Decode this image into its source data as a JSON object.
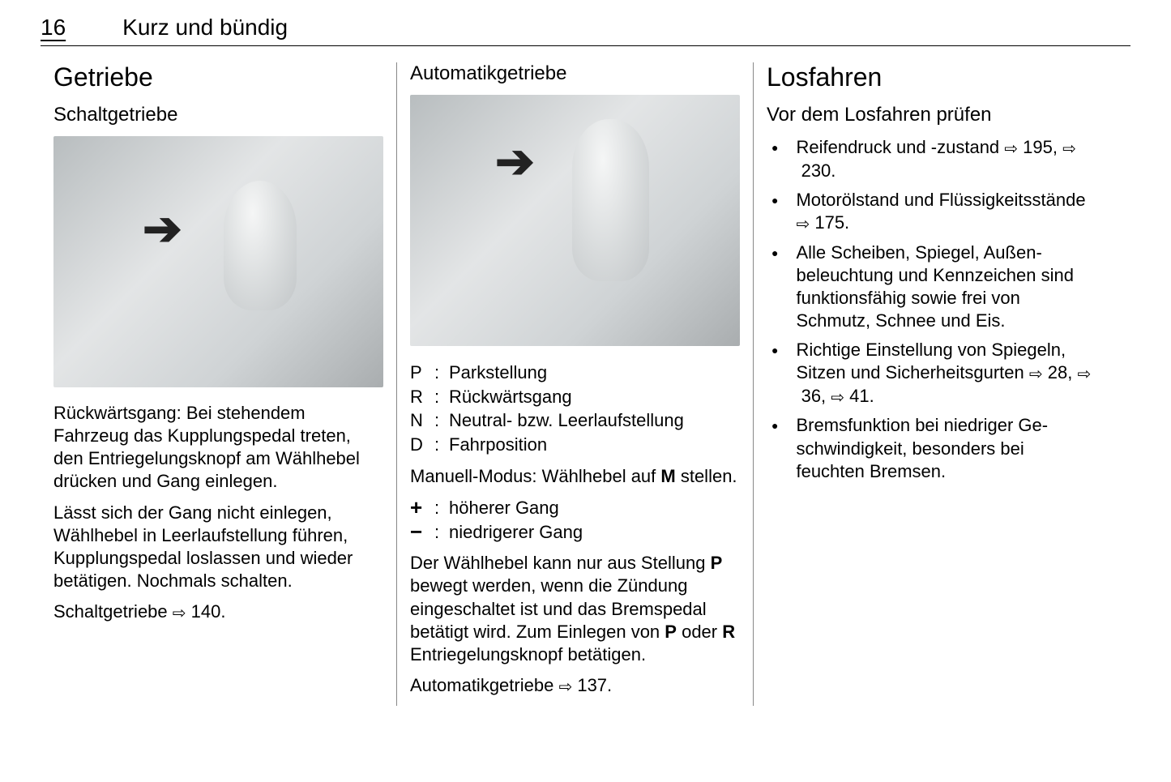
{
  "header": {
    "page_number": "16",
    "chapter": "Kurz und bündig"
  },
  "ref_glyph": "⇨",
  "col1": {
    "h1": "Getriebe",
    "h2": "Schaltgetriebe",
    "para1": "Rückwärtsgang: Bei stehendem Fahrzeug das Kupplungspedal tre­ten, den Entriegelungsknopf am Wählhebel drücken und Gang einle­gen.",
    "para2": "Lässt sich der Gang nicht einlegen, Wählhebel in Leerlaufstellung führen, Kupplungspedal loslassen und wie­der betätigen. Nochmals schalten.",
    "para3_pre": "Schaltgetriebe ",
    "para3_ref": "140."
  },
  "col2": {
    "h2": "Automatikgetriebe",
    "defs1": [
      {
        "k": "P",
        "v": "Parkstellung"
      },
      {
        "k": "R",
        "v": "Rückwärtsgang"
      },
      {
        "k": "N",
        "v": "Neutral- bzw. Leerlaufstellung"
      },
      {
        "k": "D",
        "v": "Fahrposition"
      }
    ],
    "para1_pre": "Manuell-Modus: Wählhebel auf ",
    "para1_b": "M",
    "para1_post": " stellen.",
    "defs2": [
      {
        "k": "+",
        "v": "höherer Gang"
      },
      {
        "k": "−",
        "v": "niedrigerer Gang"
      }
    ],
    "para2": "Der Wählhebel kann nur aus Stellung P bewegt werden, wenn die Zündung eingeschaltet ist und das Bremspedal betätigt wird. Zum Einlegen von P oder R Entriegelungsknopf betätigen.",
    "para3_pre": "Automatikgetriebe ",
    "para3_ref": "137."
  },
  "col3": {
    "h1": "Losfahren",
    "h2": "Vor dem Losfahren prüfen",
    "items": [
      {
        "pre": "Reifendruck und -zustand ",
        "refs": [
          "195,",
          "230."
        ]
      },
      {
        "pre": "Motorölstand und Flüssigkeits­stände ",
        "refs": [
          "175."
        ]
      },
      {
        "text": "Alle Scheiben, Spiegel, Außen­beleuchtung und Kennzeichen sind funktionsfähig sowie frei von Schmutz, Schnee und Eis."
      },
      {
        "pre": "Richtige Einstellung von Spie­geln, Sitzen und Sicherheitsgur­ten ",
        "refs": [
          "28,",
          "36,",
          "41."
        ]
      },
      {
        "text": "Bremsfunktion bei niedriger Ge­schwindigkeit, besonders bei feuchten Bremsen."
      }
    ]
  }
}
